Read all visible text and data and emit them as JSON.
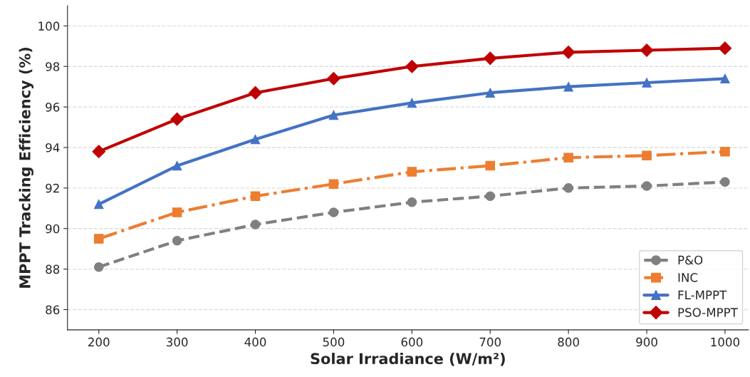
{
  "chart_data": {
    "type": "line",
    "xlabel": "Solar Irradiance (W/m²)",
    "ylabel": "MPPT Tracking Efficiency (%)",
    "x": [
      200,
      300,
      400,
      500,
      600,
      700,
      800,
      900,
      1000
    ],
    "series": [
      {
        "name": "P&O",
        "color": "#808080",
        "marker": "circle",
        "line_style": "dashed",
        "values": [
          88.1,
          89.4,
          90.2,
          90.8,
          91.3,
          91.6,
          92.0,
          92.1,
          92.3
        ]
      },
      {
        "name": "INC",
        "color": "#ed7d31",
        "marker": "square",
        "line_style": "dashdot",
        "values": [
          89.5,
          90.8,
          91.6,
          92.2,
          92.8,
          93.1,
          93.5,
          93.6,
          93.8
        ]
      },
      {
        "name": "FL-MPPT",
        "color": "#4472c4",
        "marker": "triangle",
        "line_style": "solid",
        "values": [
          91.2,
          93.1,
          94.4,
          95.6,
          96.2,
          96.7,
          97.0,
          97.2,
          97.4
        ]
      },
      {
        "name": "PSO-MPPT",
        "color": "#c00000",
        "marker": "diamond",
        "line_style": "solid",
        "values": [
          93.8,
          95.4,
          96.7,
          97.4,
          98.0,
          98.4,
          98.7,
          98.8,
          98.9
        ]
      }
    ],
    "xlim": [
      160,
      1030
    ],
    "xticks": [
      200,
      300,
      400,
      500,
      600,
      700,
      800,
      900,
      1000
    ],
    "ylim": [
      85,
      101
    ],
    "yticks": [
      86,
      88,
      90,
      92,
      94,
      96,
      98,
      100
    ],
    "grid": "y",
    "legend": "bottom right"
  }
}
